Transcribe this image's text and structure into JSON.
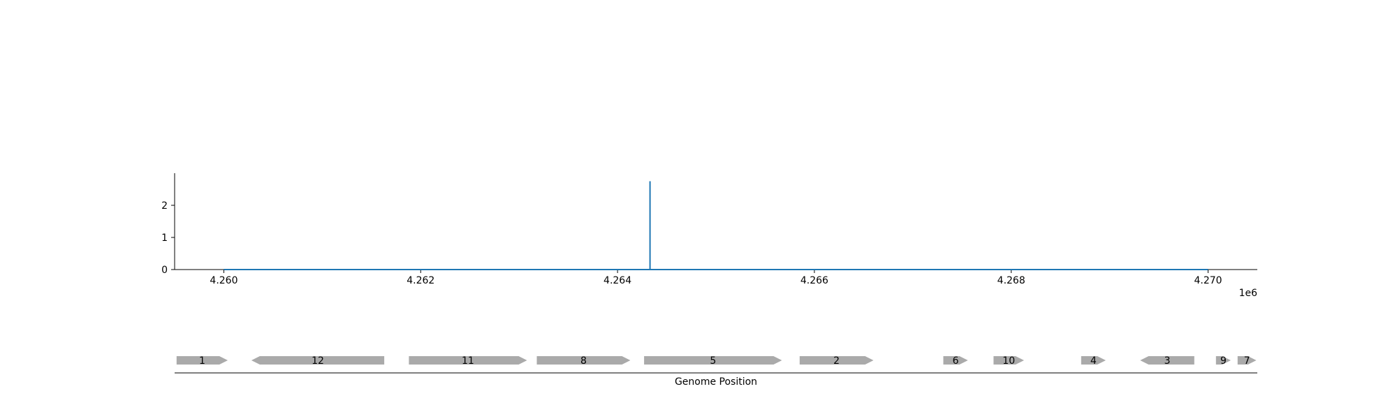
{
  "chart_data": [
    {
      "type": "line",
      "title": "",
      "xlabel": "",
      "ylabel": "",
      "x_offset_label": "1e6",
      "xlim": [
        4259500,
        4270500
      ],
      "ylim": [
        0,
        3.0
      ],
      "x_ticks": [
        4260000,
        4262000,
        4264000,
        4266000,
        4268000,
        4270000
      ],
      "x_tick_labels": [
        "4.260",
        "4.262",
        "4.264",
        "4.266",
        "4.268",
        "4.270"
      ],
      "y_ticks": [
        0,
        1,
        2
      ],
      "y_tick_labels": [
        "0",
        "1",
        "2"
      ],
      "grid": false,
      "color": "#1f77b4",
      "x_range": [
        4260000,
        4270000
      ],
      "points": [
        {
          "x": 4260000,
          "y": 0
        },
        {
          "x": 4264330,
          "y": 0
        },
        {
          "x": 4264330,
          "y": 2.75
        },
        {
          "x": 4264330,
          "y": 0
        },
        {
          "x": 4270000,
          "y": 0
        }
      ]
    },
    {
      "type": "gene-map",
      "xlabel": "Genome Position",
      "color": "#aaaaaa",
      "genes": [
        {
          "label": "1",
          "start": 4259520,
          "end": 4260040,
          "strand": "+"
        },
        {
          "label": "12",
          "start": 4260280,
          "end": 4261630,
          "strand": "-"
        },
        {
          "label": "11",
          "start": 4261880,
          "end": 4263080,
          "strand": "+"
        },
        {
          "label": "8",
          "start": 4263180,
          "end": 4264130,
          "strand": "+"
        },
        {
          "label": "5",
          "start": 4264270,
          "end": 4265670,
          "strand": "+"
        },
        {
          "label": "2",
          "start": 4265850,
          "end": 4266600,
          "strand": "+"
        },
        {
          "label": "6",
          "start": 4267310,
          "end": 4267560,
          "strand": "+"
        },
        {
          "label": "10",
          "start": 4267820,
          "end": 4268130,
          "strand": "+"
        },
        {
          "label": "4",
          "start": 4268710,
          "end": 4268960,
          "strand": "+"
        },
        {
          "label": "3",
          "start": 4269310,
          "end": 4269860,
          "strand": "-"
        },
        {
          "label": "9",
          "start": 4270080,
          "end": 4270230,
          "strand": "+"
        },
        {
          "label": "7",
          "start": 4270300,
          "end": 4270490,
          "strand": "+"
        }
      ]
    }
  ]
}
